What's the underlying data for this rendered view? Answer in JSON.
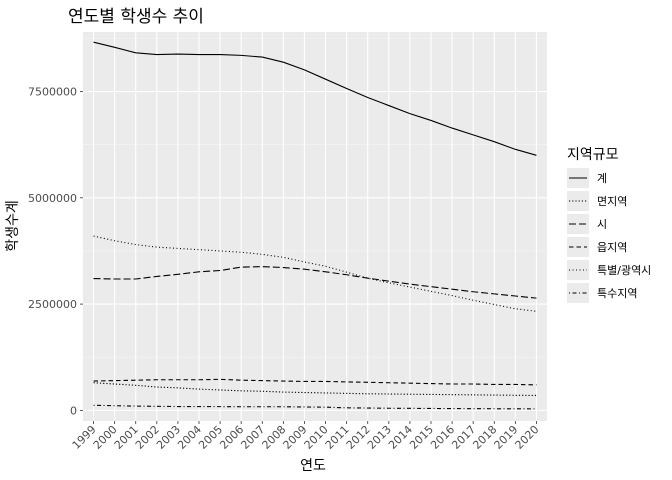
{
  "chart_data": {
    "type": "line",
    "title": "연도별 학생수 추이",
    "xlabel": "연도",
    "ylabel": "학생수계",
    "legend_title": "지역규모",
    "legend_position": "right",
    "grid": true,
    "x": [
      1999,
      2000,
      2001,
      2002,
      2003,
      2004,
      2005,
      2006,
      2007,
      2008,
      2009,
      2010,
      2011,
      2012,
      2013,
      2014,
      2015,
      2016,
      2017,
      2018,
      2019,
      2020
    ],
    "xlim": [
      1998.5,
      2020.5
    ],
    "ylim": [
      -250000,
      8900000
    ],
    "y_ticks": [
      0,
      2500000,
      5000000,
      7500000
    ],
    "y_tick_labels": [
      "0",
      "2500000",
      "5000000",
      "7500000"
    ],
    "series": [
      {
        "name": "계",
        "dash": "solid",
        "values": [
          8660000,
          8540000,
          8410000,
          8370000,
          8380000,
          8370000,
          8370000,
          8350000,
          8310000,
          8190000,
          8010000,
          7790000,
          7570000,
          7360000,
          7170000,
          6980000,
          6820000,
          6640000,
          6480000,
          6320000,
          6140000,
          6000000
        ]
      },
      {
        "name": "면지역",
        "dash": "dotted-fine",
        "values": [
          650000,
          620000,
          590000,
          550000,
          530000,
          500000,
          480000,
          460000,
          450000,
          430000,
          420000,
          410000,
          400000,
          390000,
          385000,
          380000,
          375000,
          370000,
          365000,
          360000,
          355000,
          350000
        ]
      },
      {
        "name": "시",
        "dash": "longdash",
        "values": [
          3100000,
          3090000,
          3090000,
          3150000,
          3200000,
          3260000,
          3290000,
          3370000,
          3380000,
          3360000,
          3320000,
          3260000,
          3190000,
          3110000,
          3040000,
          2970000,
          2910000,
          2850000,
          2790000,
          2740000,
          2690000,
          2640000
        ]
      },
      {
        "name": "읍지역",
        "dash": "dashed",
        "values": [
          690000,
          700000,
          710000,
          720000,
          720000,
          720000,
          730000,
          710000,
          700000,
          690000,
          680000,
          680000,
          670000,
          660000,
          650000,
          640000,
          630000,
          620000,
          620000,
          610000,
          610000,
          600000
        ]
      },
      {
        "name": "특별/광역시",
        "dash": "dotted",
        "values": [
          4100000,
          3990000,
          3900000,
          3840000,
          3810000,
          3780000,
          3750000,
          3720000,
          3670000,
          3600000,
          3490000,
          3390000,
          3250000,
          3110000,
          3000000,
          2900000,
          2800000,
          2700000,
          2590000,
          2490000,
          2390000,
          2330000
        ]
      },
      {
        "name": "특수지역",
        "dash": "dotdash",
        "values": [
          120000,
          110000,
          100000,
          95000,
          90000,
          90000,
          88000,
          85000,
          85000,
          85000,
          80000,
          75000,
          60000,
          55000,
          50000,
          48000,
          45000,
          42000,
          40000,
          38000,
          36000,
          35000
        ]
      }
    ]
  }
}
